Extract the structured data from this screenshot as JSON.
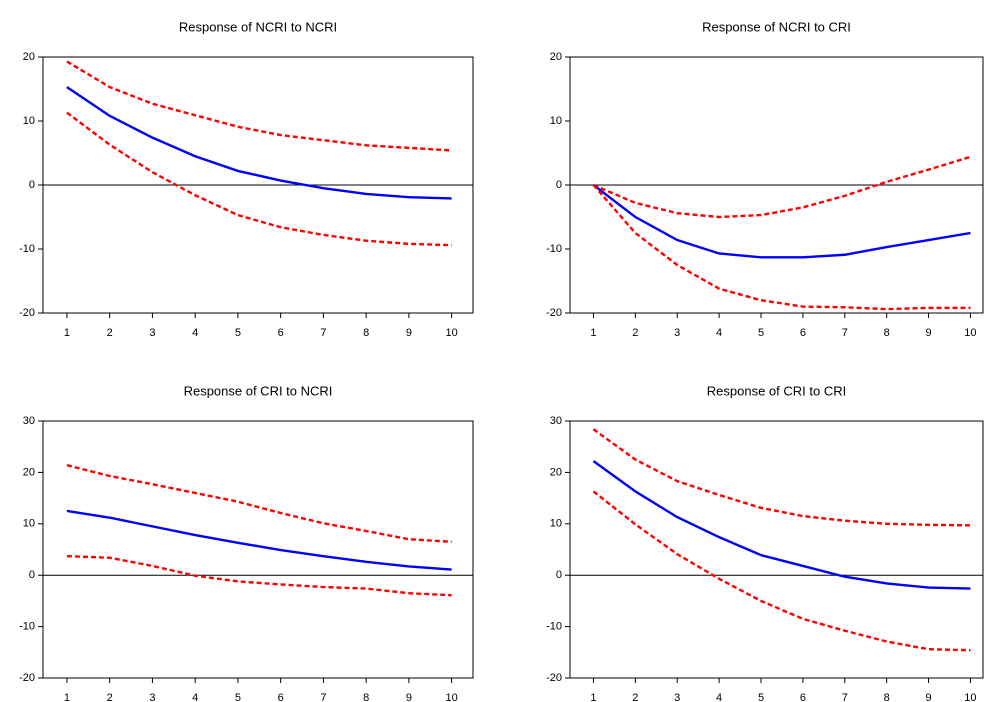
{
  "chart_data": [
    {
      "type": "line",
      "title": "Response of NCRI to NCRI",
      "x": [
        1,
        2,
        3,
        4,
        5,
        6,
        7,
        8,
        9,
        10
      ],
      "xlim": [
        0.44,
        10.5
      ],
      "xticks": [
        1,
        2,
        3,
        4,
        5,
        6,
        7,
        8,
        9,
        10
      ],
      "ylim": [
        -20,
        20
      ],
      "yticks": [
        -20,
        -10,
        0,
        10,
        20
      ],
      "zero_line": true,
      "series": [
        {
          "color": "#ff0000",
          "dashed": true,
          "values": [
            19.3,
            15.3,
            12.7,
            10.9,
            9.1,
            7.8,
            7.0,
            6.2,
            5.8,
            5.4
          ]
        },
        {
          "color": "#0000ff",
          "dashed": false,
          "values": [
            15.3,
            10.8,
            7.4,
            4.5,
            2.2,
            0.7,
            -0.5,
            -1.4,
            -1.9,
            -2.1
          ]
        },
        {
          "color": "#ff0000",
          "dashed": true,
          "values": [
            11.3,
            6.3,
            2.0,
            -1.6,
            -4.7,
            -6.6,
            -7.8,
            -8.7,
            -9.2,
            -9.4
          ]
        }
      ]
    },
    {
      "type": "line",
      "title": "Response of NCRI to CRI",
      "x": [
        1,
        2,
        3,
        4,
        5,
        6,
        7,
        8,
        9,
        10
      ],
      "xlim": [
        0.44,
        10.3
      ],
      "xticks": [
        1,
        2,
        3,
        4,
        5,
        6,
        7,
        8,
        9,
        10
      ],
      "ylim": [
        -20,
        20
      ],
      "yticks": [
        -20,
        -10,
        0,
        10,
        20
      ],
      "zero_line": true,
      "series": [
        {
          "color": "#ff0000",
          "dashed": true,
          "values": [
            0,
            -2.8,
            -4.4,
            -5.0,
            -4.7,
            -3.5,
            -1.7,
            0.5,
            2.4,
            4.4
          ]
        },
        {
          "color": "#0000ff",
          "dashed": false,
          "values": [
            0,
            -5.0,
            -8.6,
            -10.7,
            -11.3,
            -11.3,
            -10.9,
            -9.7,
            -8.6,
            -7.5
          ]
        },
        {
          "color": "#ff0000",
          "dashed": true,
          "values": [
            0,
            -7.5,
            -12.5,
            -16.2,
            -18.0,
            -19.0,
            -19.1,
            -19.4,
            -19.2,
            -19.2
          ]
        }
      ]
    },
    {
      "type": "line",
      "title": "Response of CRI to NCRI",
      "x": [
        1,
        2,
        3,
        4,
        5,
        6,
        7,
        8,
        9,
        10
      ],
      "xlim": [
        0.44,
        10.5
      ],
      "xticks": [
        1,
        2,
        3,
        4,
        5,
        6,
        7,
        8,
        9,
        10
      ],
      "ylim": [
        -20,
        30
      ],
      "yticks": [
        -20,
        -10,
        0,
        10,
        20,
        30
      ],
      "zero_line": true,
      "series": [
        {
          "color": "#ff0000",
          "dashed": true,
          "values": [
            21.4,
            19.3,
            17.7,
            16.0,
            14.3,
            12.1,
            10.1,
            8.6,
            7.0,
            6.5
          ]
        },
        {
          "color": "#0000ff",
          "dashed": false,
          "values": [
            12.5,
            11.2,
            9.5,
            7.8,
            6.3,
            4.9,
            3.7,
            2.6,
            1.7,
            1.1
          ]
        },
        {
          "color": "#ff0000",
          "dashed": true,
          "values": [
            3.7,
            3.4,
            1.8,
            -0.1,
            -1.2,
            -1.8,
            -2.3,
            -2.6,
            -3.5,
            -3.9
          ]
        }
      ]
    },
    {
      "type": "line",
      "title": "Response of CRI to CRI",
      "x": [
        1,
        2,
        3,
        4,
        5,
        6,
        7,
        8,
        9,
        10
      ],
      "xlim": [
        0.44,
        10.3
      ],
      "xticks": [
        1,
        2,
        3,
        4,
        5,
        6,
        7,
        8,
        9,
        10
      ],
      "ylim": [
        -20,
        30
      ],
      "yticks": [
        -20,
        -10,
        0,
        10,
        20,
        30
      ],
      "zero_line": true,
      "series": [
        {
          "color": "#ff0000",
          "dashed": true,
          "values": [
            28.4,
            22.5,
            18.3,
            15.6,
            13.1,
            11.5,
            10.6,
            10.0,
            9.8,
            9.7
          ]
        },
        {
          "color": "#0000ff",
          "dashed": false,
          "values": [
            22.2,
            16.3,
            11.3,
            7.4,
            3.9,
            1.8,
            -0.3,
            -1.6,
            -2.4,
            -2.6
          ]
        },
        {
          "color": "#ff0000",
          "dashed": true,
          "values": [
            16.3,
            9.9,
            4.1,
            -0.7,
            -5.0,
            -8.5,
            -10.8,
            -12.9,
            -14.4,
            -14.6
          ]
        }
      ]
    }
  ]
}
